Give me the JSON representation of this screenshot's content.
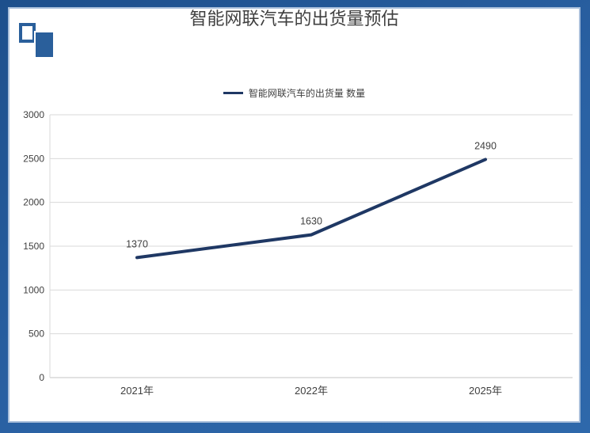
{
  "header": {
    "title": "智能网联汽车的出货量预估"
  },
  "logo": {
    "name": "overlapping-pages-logo",
    "color": "#2a5f9b"
  },
  "legend": {
    "label": "智能网联汽车的出货量 数量",
    "line_color": "#1f3864"
  },
  "frame": {
    "border_color": "#275d9e",
    "inner_line_color": "#a9bfdb",
    "background": "#ffffff"
  },
  "chart_data": {
    "type": "line",
    "title": "智能网联汽车的出货量预估",
    "categories": [
      "2021年",
      "2022年",
      "2025年"
    ],
    "series": [
      {
        "name": "智能网联汽车的出货量 数量",
        "values": [
          1370,
          1630,
          2490
        ],
        "color": "#1f3864",
        "data_labels": [
          "1370",
          "1630",
          "2490"
        ]
      }
    ],
    "xlabel": "",
    "ylabel": "",
    "ylim": [
      0,
      3000
    ],
    "yticks": [
      0,
      500,
      1000,
      1500,
      2000,
      2500,
      3000
    ],
    "grid": true,
    "legend_position": "top-center",
    "colors": {
      "grid": "#d9d9d9",
      "axis": "#c6c6c6",
      "tick_text": "#404040",
      "data_label_text": "#404040"
    }
  }
}
